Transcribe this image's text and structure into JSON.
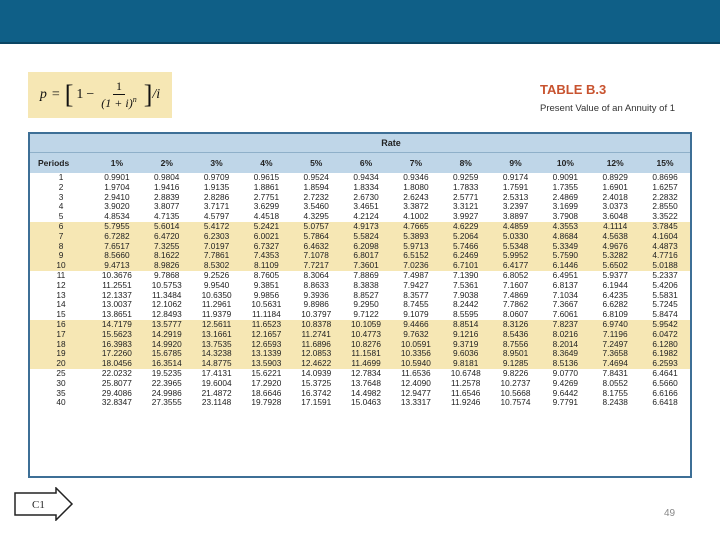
{
  "formula": {
    "p": "p",
    "equals": "=",
    "one": "1",
    "minus": "−",
    "numerator": "1",
    "denominator": "(1 + i)",
    "exponent": "n",
    "divide": "/i"
  },
  "table_title": "TABLE B.3",
  "table_subtitle": "Present Value of an Annuity of 1",
  "rate_label": "Rate",
  "periods_label": "Periods",
  "rates": [
    "1%",
    "2%",
    "3%",
    "4%",
    "5%",
    "6%",
    "7%",
    "8%",
    "9%",
    "10%",
    "12%",
    "15%"
  ],
  "rows": [
    [
      "1",
      "0.9901",
      "0.9804",
      "0.9709",
      "0.9615",
      "0.9524",
      "0.9434",
      "0.9346",
      "0.9259",
      "0.9174",
      "0.9091",
      "0.8929",
      "0.8696"
    ],
    [
      "2",
      "1.9704",
      "1.9416",
      "1.9135",
      "1.8861",
      "1.8594",
      "1.8334",
      "1.8080",
      "1.7833",
      "1.7591",
      "1.7355",
      "1.6901",
      "1.6257"
    ],
    [
      "3",
      "2.9410",
      "2.8839",
      "2.8286",
      "2.7751",
      "2.7232",
      "2.6730",
      "2.6243",
      "2.5771",
      "2.5313",
      "2.4869",
      "2.4018",
      "2.2832"
    ],
    [
      "4",
      "3.9020",
      "3.8077",
      "3.7171",
      "3.6299",
      "3.5460",
      "3.4651",
      "3.3872",
      "3.3121",
      "3.2397",
      "3.1699",
      "3.0373",
      "2.8550"
    ],
    [
      "5",
      "4.8534",
      "4.7135",
      "4.5797",
      "4.4518",
      "4.3295",
      "4.2124",
      "4.1002",
      "3.9927",
      "3.8897",
      "3.7908",
      "3.6048",
      "3.3522"
    ],
    [
      "6",
      "5.7955",
      "5.6014",
      "5.4172",
      "5.2421",
      "5.0757",
      "4.9173",
      "4.7665",
      "4.6229",
      "4.4859",
      "4.3553",
      "4.1114",
      "3.7845"
    ],
    [
      "7",
      "6.7282",
      "6.4720",
      "6.2303",
      "6.0021",
      "5.7864",
      "5.5824",
      "5.3893",
      "5.2064",
      "5.0330",
      "4.8684",
      "4.5638",
      "4.1604"
    ],
    [
      "8",
      "7.6517",
      "7.3255",
      "7.0197",
      "6.7327",
      "6.4632",
      "6.2098",
      "5.9713",
      "5.7466",
      "5.5348",
      "5.3349",
      "4.9676",
      "4.4873"
    ],
    [
      "9",
      "8.5660",
      "8.1622",
      "7.7861",
      "7.4353",
      "7.1078",
      "6.8017",
      "6.5152",
      "6.2469",
      "5.9952",
      "5.7590",
      "5.3282",
      "4.7716"
    ],
    [
      "10",
      "9.4713",
      "8.9826",
      "8.5302",
      "8.1109",
      "7.7217",
      "7.3601",
      "7.0236",
      "6.7101",
      "6.4177",
      "6.1446",
      "5.6502",
      "5.0188"
    ],
    [
      "11",
      "10.3676",
      "9.7868",
      "9.2526",
      "8.7605",
      "8.3064",
      "7.8869",
      "7.4987",
      "7.1390",
      "6.8052",
      "6.4951",
      "5.9377",
      "5.2337"
    ],
    [
      "12",
      "11.2551",
      "10.5753",
      "9.9540",
      "9.3851",
      "8.8633",
      "8.3838",
      "7.9427",
      "7.5361",
      "7.1607",
      "6.8137",
      "6.1944",
      "5.4206"
    ],
    [
      "13",
      "12.1337",
      "11.3484",
      "10.6350",
      "9.9856",
      "9.3936",
      "8.8527",
      "8.3577",
      "7.9038",
      "7.4869",
      "7.1034",
      "6.4235",
      "5.5831"
    ],
    [
      "14",
      "13.0037",
      "12.1062",
      "11.2961",
      "10.5631",
      "9.8986",
      "9.2950",
      "8.7455",
      "8.2442",
      "7.7862",
      "7.3667",
      "6.6282",
      "5.7245"
    ],
    [
      "15",
      "13.8651",
      "12.8493",
      "11.9379",
      "11.1184",
      "10.3797",
      "9.7122",
      "9.1079",
      "8.5595",
      "8.0607",
      "7.6061",
      "6.8109",
      "5.8474"
    ],
    [
      "16",
      "14.7179",
      "13.5777",
      "12.5611",
      "11.6523",
      "10.8378",
      "10.1059",
      "9.4466",
      "8.8514",
      "8.3126",
      "7.8237",
      "6.9740",
      "5.9542"
    ],
    [
      "17",
      "15.5623",
      "14.2919",
      "13.1661",
      "12.1657",
      "11.2741",
      "10.4773",
      "9.7632",
      "9.1216",
      "8.5436",
      "8.0216",
      "7.1196",
      "6.0472"
    ],
    [
      "18",
      "16.3983",
      "14.9920",
      "13.7535",
      "12.6593",
      "11.6896",
      "10.8276",
      "10.0591",
      "9.3719",
      "8.7556",
      "8.2014",
      "7.2497",
      "6.1280"
    ],
    [
      "19",
      "17.2260",
      "15.6785",
      "14.3238",
      "13.1339",
      "12.0853",
      "11.1581",
      "10.3356",
      "9.6036",
      "8.9501",
      "8.3649",
      "7.3658",
      "6.1982"
    ],
    [
      "20",
      "18.0456",
      "16.3514",
      "14.8775",
      "13.5903",
      "12.4622",
      "11.4699",
      "10.5940",
      "9.8181",
      "9.1285",
      "8.5136",
      "7.4694",
      "6.2593"
    ],
    [
      "25",
      "22.0232",
      "19.5235",
      "17.4131",
      "15.6221",
      "14.0939",
      "12.7834",
      "11.6536",
      "10.6748",
      "9.8226",
      "9.0770",
      "7.8431",
      "6.4641"
    ],
    [
      "30",
      "25.8077",
      "22.3965",
      "19.6004",
      "17.2920",
      "15.3725",
      "13.7648",
      "12.4090",
      "11.2578",
      "10.2737",
      "9.4269",
      "8.0552",
      "6.5660"
    ],
    [
      "35",
      "29.4086",
      "24.9986",
      "21.4872",
      "18.6646",
      "16.3742",
      "14.4982",
      "12.9477",
      "11.6546",
      "10.5668",
      "9.6442",
      "8.1755",
      "6.6166"
    ],
    [
      "40",
      "32.8347",
      "27.3555",
      "23.1148",
      "19.7928",
      "17.1591",
      "15.0463",
      "13.3317",
      "11.9246",
      "10.7574",
      "9.7791",
      "8.2438",
      "6.6418"
    ]
  ],
  "nav": {
    "label": "C1"
  },
  "slide_number": "49"
}
